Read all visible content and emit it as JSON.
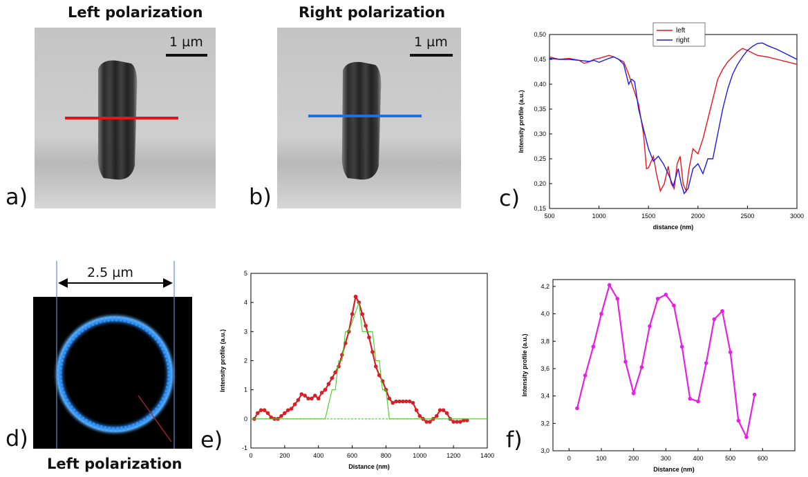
{
  "panels": {
    "a": {
      "letter": "a)",
      "title": "Left polarization",
      "scale_bar": "1 µm",
      "line_color": "#e8141c"
    },
    "b": {
      "letter": "b)",
      "title": "Right polarization",
      "scale_bar": "1 µm",
      "line_color": "#1f6fe0"
    },
    "c": {
      "letter": "c)"
    },
    "d": {
      "letter": "d)",
      "caption": "Left polarization",
      "dimension": "2.5 µm"
    },
    "e": {
      "letter": "e)"
    },
    "f": {
      "letter": "f)"
    }
  },
  "chart_data": [
    {
      "id": "c",
      "type": "line",
      "xlabel": "distance (nm)",
      "ylabel": "Intensity profile (a.u.)",
      "xlim": [
        500,
        3000
      ],
      "ylim": [
        0.15,
        0.5
      ],
      "xticks": [
        "500",
        "1000",
        "1500",
        "2000",
        "2500",
        "3000"
      ],
      "yticks": [
        "0,15",
        "0,20",
        "0,25",
        "0,30",
        "0,35",
        "0,40",
        "0,45",
        "0,50"
      ],
      "legend_position": "top-center",
      "series": [
        {
          "name": "left",
          "color": "#e8141c",
          "x": [
            500,
            600,
            700,
            800,
            850,
            900,
            950,
            1000,
            1050,
            1100,
            1150,
            1200,
            1250,
            1300,
            1350,
            1400,
            1450,
            1480,
            1500,
            1550,
            1580,
            1620,
            1660,
            1700,
            1730,
            1760,
            1790,
            1820,
            1850,
            1880,
            1910,
            1950,
            2000,
            2050,
            2100,
            2150,
            2200,
            2250,
            2300,
            2350,
            2400,
            2450,
            2500,
            2600,
            2700,
            2800,
            2900,
            3000
          ],
          "y": [
            0.455,
            0.45,
            0.452,
            0.448,
            0.442,
            0.445,
            0.45,
            0.452,
            0.455,
            0.458,
            0.455,
            0.45,
            0.445,
            0.42,
            0.39,
            0.36,
            0.3,
            0.23,
            0.232,
            0.255,
            0.22,
            0.185,
            0.2,
            0.235,
            0.2,
            0.19,
            0.24,
            0.255,
            0.2,
            0.185,
            0.23,
            0.27,
            0.26,
            0.29,
            0.33,
            0.37,
            0.41,
            0.43,
            0.445,
            0.455,
            0.465,
            0.472,
            0.468,
            0.458,
            0.455,
            0.45,
            0.445,
            0.44
          ]
        },
        {
          "name": "right",
          "color": "#1a1ae6",
          "x": [
            500,
            600,
            700,
            800,
            900,
            950,
            1000,
            1050,
            1100,
            1150,
            1200,
            1250,
            1300,
            1330,
            1360,
            1400,
            1450,
            1500,
            1550,
            1600,
            1650,
            1700,
            1750,
            1800,
            1830,
            1860,
            1900,
            1950,
            2000,
            2050,
            2100,
            2150,
            2200,
            2250,
            2300,
            2350,
            2400,
            2450,
            2500,
            2550,
            2600,
            2650,
            2700,
            2800,
            2900,
            3000
          ],
          "y": [
            0.452,
            0.45,
            0.45,
            0.448,
            0.446,
            0.448,
            0.444,
            0.448,
            0.452,
            0.455,
            0.45,
            0.44,
            0.4,
            0.41,
            0.405,
            0.35,
            0.31,
            0.27,
            0.245,
            0.255,
            0.24,
            0.22,
            0.195,
            0.23,
            0.2,
            0.18,
            0.19,
            0.23,
            0.24,
            0.22,
            0.25,
            0.25,
            0.3,
            0.35,
            0.39,
            0.42,
            0.44,
            0.455,
            0.468,
            0.476,
            0.482,
            0.483,
            0.478,
            0.47,
            0.46,
            0.45
          ]
        }
      ]
    },
    {
      "id": "e",
      "type": "line",
      "xlabel": "Distance (nm)",
      "ylabel": "Intensity profile (a.u.)",
      "xlim": [
        0,
        1400
      ],
      "ylim": [
        -1,
        5
      ],
      "xticks": [
        "0",
        "200",
        "400",
        "600",
        "800",
        "1000",
        "1200",
        "1400"
      ],
      "yticks": [
        "-1",
        "0",
        "1",
        "2",
        "3",
        "4",
        "5"
      ],
      "series": [
        {
          "color": "#d81f26",
          "markers": true,
          "x": [
            20,
            40,
            60,
            80,
            100,
            120,
            140,
            160,
            180,
            200,
            220,
            240,
            260,
            280,
            300,
            320,
            340,
            360,
            380,
            400,
            420,
            440,
            460,
            480,
            500,
            520,
            540,
            560,
            580,
            600,
            620,
            640,
            660,
            680,
            700,
            720,
            740,
            760,
            780,
            800,
            820,
            840,
            860,
            880,
            900,
            920,
            940,
            960,
            980,
            1000,
            1020,
            1040,
            1060,
            1080,
            1100,
            1120,
            1140,
            1160,
            1180,
            1200,
            1220,
            1240,
            1260,
            1280
          ],
          "y": [
            0.0,
            0.2,
            0.3,
            0.3,
            0.2,
            0.05,
            0.0,
            0.0,
            0.1,
            0.2,
            0.3,
            0.35,
            0.5,
            0.65,
            0.85,
            0.8,
            0.7,
            0.7,
            0.8,
            0.7,
            0.9,
            1.0,
            1.2,
            1.4,
            1.6,
            1.8,
            2.2,
            2.6,
            3.0,
            3.6,
            4.2,
            4.0,
            3.6,
            3.2,
            2.8,
            2.3,
            1.8,
            1.5,
            1.3,
            1.0,
            0.7,
            0.55,
            0.6,
            0.6,
            0.6,
            0.6,
            0.6,
            0.55,
            0.3,
            0.1,
            0.0,
            -0.1,
            -0.1,
            0.0,
            0.1,
            0.3,
            0.3,
            0.2,
            0.0,
            -0.1,
            -0.1,
            -0.1,
            -0.05,
            -0.05
          ]
        },
        {
          "color": "#44cc22",
          "dashed_part": true,
          "x": [
            0,
            420,
            440,
            480,
            500,
            520,
            540,
            560,
            580,
            640,
            660,
            720,
            740,
            760,
            780,
            800,
            820,
            840,
            1400
          ],
          "y": [
            0,
            0,
            0,
            1,
            1,
            2,
            2,
            3,
            3,
            4,
            3,
            3,
            2,
            2,
            1,
            1,
            0,
            0,
            0
          ]
        }
      ]
    },
    {
      "id": "f",
      "type": "line",
      "xlabel": "Distance (nm)",
      "ylabel": "Intensity profile (a.u.)",
      "xlim": [
        -50,
        700
      ],
      "ylim": [
        3.0,
        4.25
      ],
      "xticks": [
        "0",
        "100",
        "200",
        "300",
        "400",
        "500",
        "600"
      ],
      "yticks": [
        "3,0",
        "3,2",
        "3,4",
        "3,6",
        "3,8",
        "4,0",
        "4,2"
      ],
      "series": [
        {
          "color": "#e61ee6",
          "markers": true,
          "x": [
            25,
            50,
            75,
            100,
            125,
            150,
            175,
            200,
            225,
            250,
            275,
            300,
            325,
            350,
            375,
            400,
            425,
            450,
            475,
            500,
            525,
            550,
            575
          ],
          "y": [
            3.31,
            3.55,
            3.76,
            4.0,
            4.21,
            4.11,
            3.65,
            3.42,
            3.61,
            3.91,
            4.11,
            4.14,
            4.06,
            3.76,
            3.38,
            3.36,
            3.64,
            3.96,
            4.02,
            3.72,
            3.22,
            3.1,
            3.41
          ]
        }
      ]
    }
  ]
}
